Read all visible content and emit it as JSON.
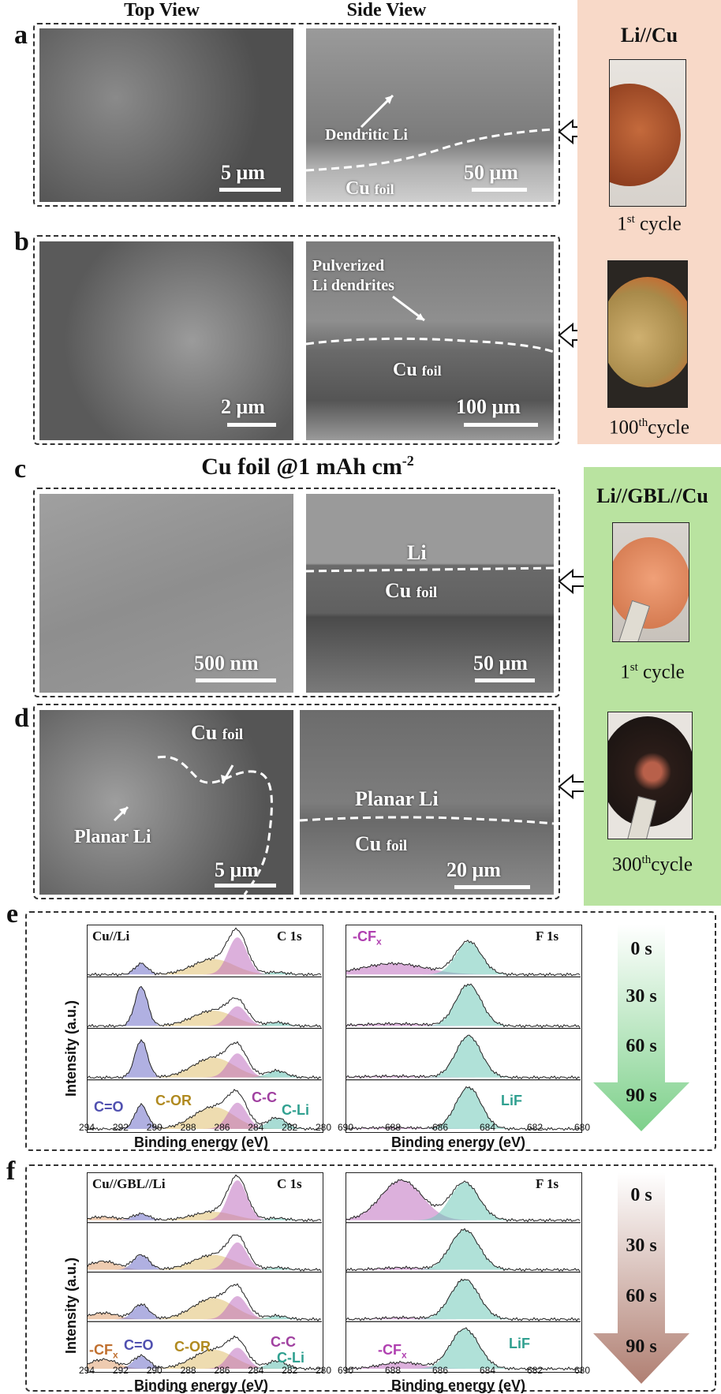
{
  "headers": {
    "top_view": "Top View",
    "side_view": "Side View"
  },
  "panels": {
    "a": {
      "label": "a",
      "top_scale": "5 μm",
      "side_scale": "50 μm",
      "side_note": "Dendritic Li",
      "side_cu": "Cu",
      "side_cu_sub": "foil"
    },
    "b": {
      "label": "b",
      "top_scale": "2 μm",
      "side_scale": "100 μm",
      "side_note1": "Pulverized",
      "side_note2": "Li dendrites",
      "side_cu": "Cu",
      "side_cu_sub": "foil"
    },
    "c": {
      "label": "c",
      "title": "Cu foil @1 mAh cm",
      "title_sup": "-2",
      "top_scale": "500 nm",
      "side_scale": "50 μm",
      "side_li": "Li",
      "side_cu": "Cu",
      "side_cu_sub": "foil"
    },
    "d": {
      "label": "d",
      "top_scale": "5 μm",
      "side_scale": "20 μm",
      "top_cu": "Cu",
      "top_cu_sub": "foil",
      "top_planar": "Planar Li",
      "side_planar": "Planar Li",
      "side_cu": "Cu",
      "side_cu_sub": "foil"
    },
    "e": {
      "label": "e"
    },
    "f": {
      "label": "f"
    }
  },
  "side_panels": {
    "li_cu": {
      "title": "Li//Cu",
      "cycle1_num": "1",
      "cycle1_sup": "st",
      "cycle1_word": " cycle",
      "cycle2_num": "100",
      "cycle2_sup": "th",
      "cycle2_word": "cycle",
      "bg": "#f8d9c8"
    },
    "li_gbl_cu": {
      "title": "Li//GBL//Cu",
      "cycle1_num": "1",
      "cycle1_sup": "st",
      "cycle1_word": " cycle",
      "cycle2_num": "300",
      "cycle2_sup": "th",
      "cycle2_word": "cycle",
      "bg": "#b9e3a0"
    }
  },
  "xps": {
    "e_c1s": {
      "sample": "Cu//Li",
      "core": "C 1s",
      "xlabel": "Binding energy (eV)",
      "ticks": [
        "294",
        "292",
        "290",
        "288",
        "286",
        "284",
        "282",
        "280"
      ],
      "peaks": {
        "co": "C=O",
        "cor": "C-OR",
        "cc": "C-C",
        "cli": "C-Li"
      }
    },
    "e_f1s": {
      "core": "F 1s",
      "xlabel": "Binding energy (eV)",
      "ticks": [
        "690",
        "688",
        "686",
        "684",
        "682",
        "680"
      ],
      "peaks": {
        "cfx": "-CF",
        "cfx_sub": "x",
        "lif": "LiF"
      }
    },
    "f_c1s": {
      "sample": "Cu//GBL//Li",
      "core": "C 1s",
      "xlabel": "Binding energy (eV)",
      "ticks": [
        "294",
        "292",
        "290",
        "288",
        "286",
        "284",
        "282",
        "280"
      ],
      "peaks": {
        "cfx": "-CF",
        "cfx_sub": "x",
        "co": "C=O",
        "cor": "C-OR",
        "cc": "C-C",
        "cli": "C-Li"
      }
    },
    "f_f1s": {
      "core": "F 1s",
      "xlabel": "Binding energy (eV)",
      "ticks": [
        "690",
        "688",
        "686",
        "684",
        "682",
        "680"
      ],
      "peaks": {
        "cfx": "-CF",
        "cfx_sub": "x",
        "lif": "LiF"
      }
    },
    "ylabel": "Intensity (a.u.)",
    "times": [
      "0 s",
      "30 s",
      "60 s",
      "90 s"
    ]
  },
  "colors": {
    "co": "#6f6fc8",
    "cor": "#e0c070",
    "cc": "#c070c0",
    "cli": "#60c0b0",
    "lif": "#70c8b8",
    "cfx": "#c070c0"
  }
}
